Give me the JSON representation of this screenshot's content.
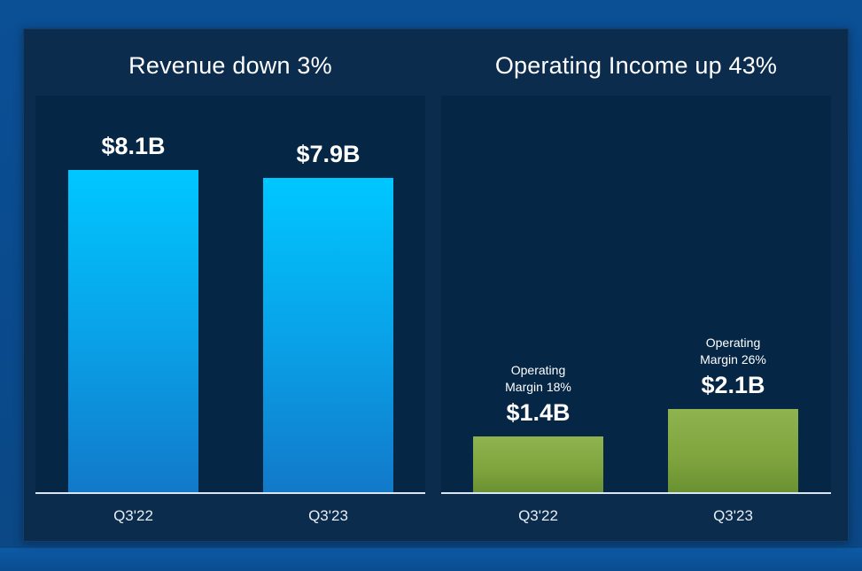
{
  "chart_data": [
    {
      "type": "bar",
      "title": "Revenue down 3%",
      "categories": [
        "Q3'22",
        "Q3'23"
      ],
      "values": [
        8.1,
        7.9
      ],
      "value_labels": [
        "$8.1B",
        "$7.9B"
      ],
      "ylim": [
        0,
        10
      ],
      "color": "#00c7ff"
    },
    {
      "type": "bar",
      "title": "Operating Income up 43%",
      "categories": [
        "Q3'22",
        "Q3'23"
      ],
      "values": [
        1.4,
        2.1
      ],
      "value_labels": [
        "$1.4B",
        "$2.1B"
      ],
      "notes": [
        [
          "Operating",
          "Margin 18%"
        ],
        [
          "Operating",
          "Margin 26%"
        ]
      ],
      "ylim": [
        0,
        10
      ],
      "color": "#86ab45"
    }
  ]
}
